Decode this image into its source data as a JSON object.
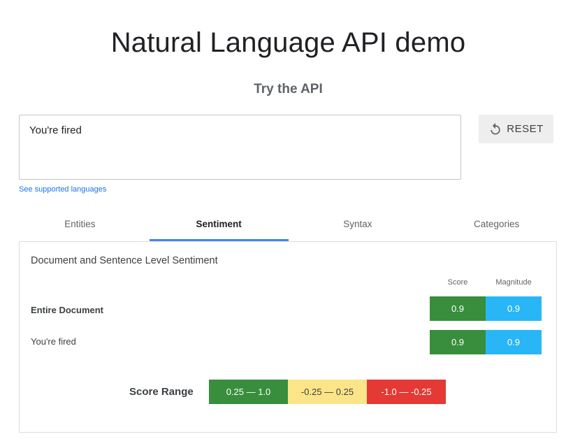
{
  "header": {
    "title": "Natural Language API demo"
  },
  "try_api": {
    "title": "Try the API",
    "input_value": "You're fired",
    "reset_label": "RESET",
    "languages_link": "See supported languages"
  },
  "tabs": [
    {
      "label": "Entities",
      "active": false
    },
    {
      "label": "Sentiment",
      "active": true
    },
    {
      "label": "Syntax",
      "active": false
    },
    {
      "label": "Categories",
      "active": false
    }
  ],
  "sentiment": {
    "heading": "Document and Sentence Level Sentiment",
    "columns": {
      "score": "Score",
      "magnitude": "Magnitude"
    },
    "rows": [
      {
        "label": "Entire Document",
        "score": "0.9",
        "magnitude": "0.9"
      },
      {
        "label": "You're fired",
        "score": "0.9",
        "magnitude": "0.9"
      }
    ],
    "score_range": {
      "label": "Score Range",
      "positive": "0.25 — 1.0",
      "neutral": "-0.25 — 0.25",
      "negative": "-1.0 — -0.25"
    }
  },
  "icons": {
    "reset": "refresh-icon"
  },
  "colors": {
    "accent": "#4285f4",
    "link": "#1a73e8",
    "score_green": "#388e3c",
    "magnitude_blue": "#29b6f6",
    "neutral_yellow": "#fce488",
    "negative_red": "#e53935"
  }
}
